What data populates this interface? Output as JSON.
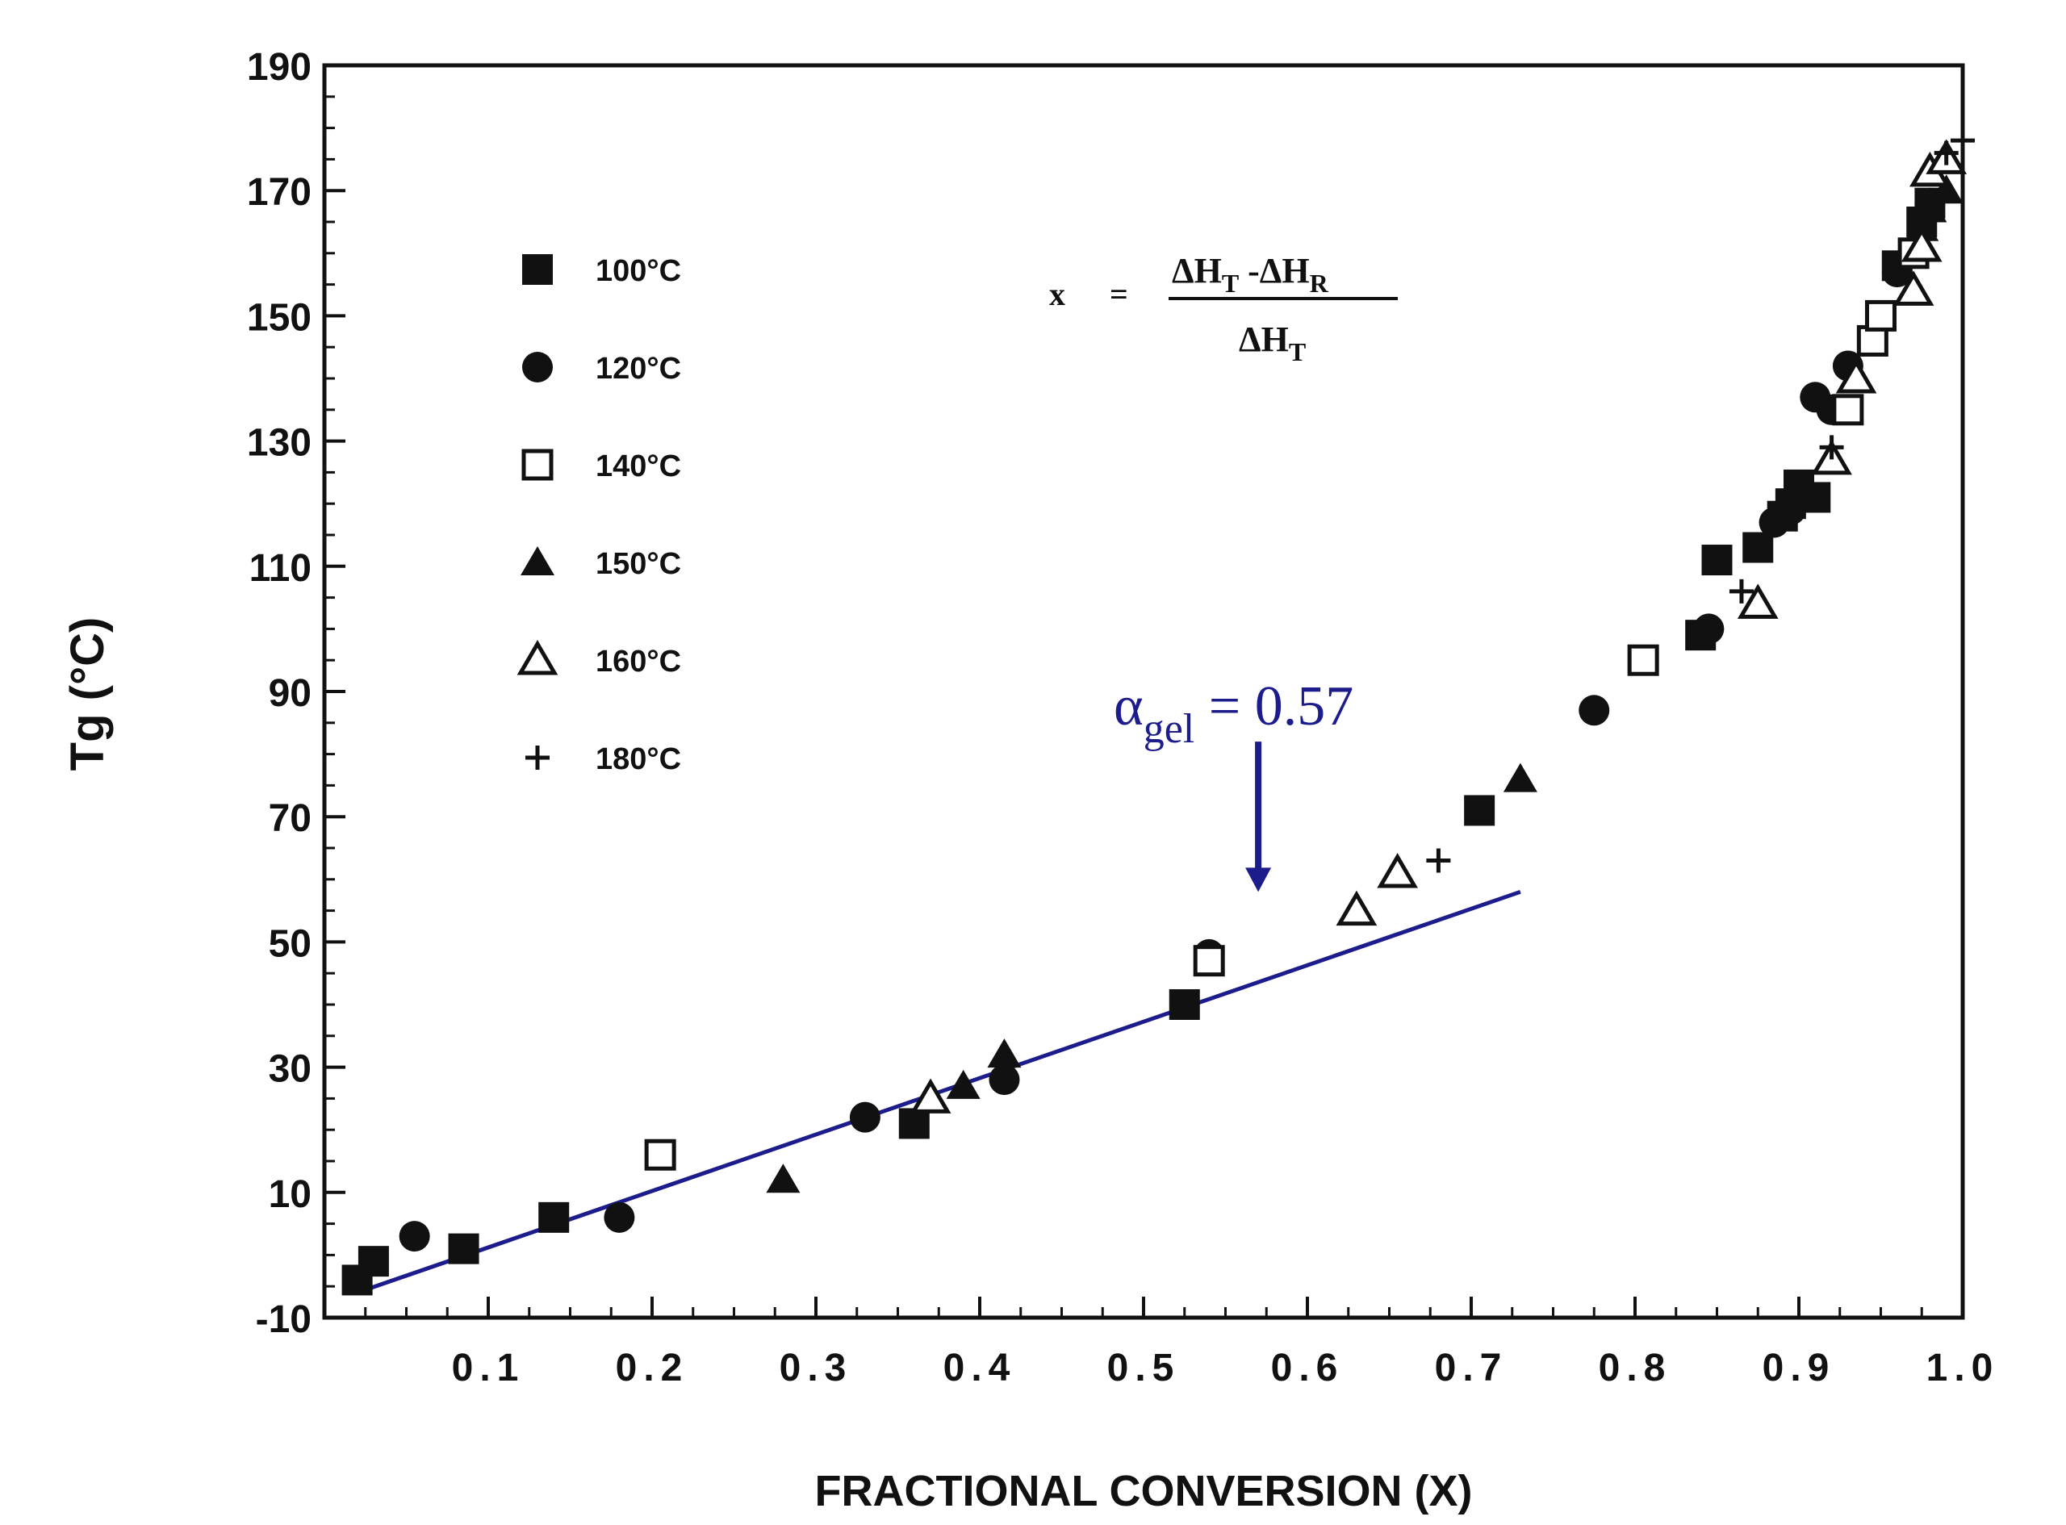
{
  "chart_data": {
    "type": "scatter",
    "xlabel": "FRACTIONAL CONVERSION (X)",
    "ylabel": "Tg  (°C)",
    "xlim": [
      0.0,
      1.0
    ],
    "ylim": [
      -10,
      190
    ],
    "x_ticks": [
      "0.1",
      "0.2",
      "0.3",
      "0.4",
      "0.5",
      "0.6",
      "0.7",
      "0.8",
      "0.9",
      "1.0"
    ],
    "y_ticks": [
      "-10",
      "10",
      "30",
      "50",
      "70",
      "90",
      "110",
      "130",
      "150",
      "170",
      "190"
    ],
    "grid": false,
    "legend_position": "upper-left",
    "formula": {
      "lhs": "x",
      "equals": "=",
      "num_a": "ΔH",
      "num_a_sub": "T",
      "num_minus": " -ΔH",
      "num_b_sub": "R",
      "den": "ΔH",
      "den_sub": "T"
    },
    "annotation": {
      "symbol": "α",
      "subscript": "gel",
      "text": " = 0.57",
      "color": "#1c1c8c",
      "arrow_x": 0.57,
      "arrow_y_from": 82,
      "arrow_y_to": 58
    },
    "fit_line": {
      "color": "#1c1c8c",
      "x": [
        0.02,
        0.73
      ],
      "y": [
        -6,
        58
      ]
    },
    "series": [
      {
        "name": "100°C",
        "marker": "square-filled",
        "x": [
          0.02,
          0.03,
          0.085,
          0.14,
          0.36,
          0.525,
          0.705,
          0.84,
          0.85,
          0.875,
          0.89,
          0.895,
          0.9,
          0.91,
          0.96,
          0.975,
          0.98
        ],
        "y": [
          -4,
          -1,
          1,
          6,
          21,
          40,
          71,
          99,
          111,
          113,
          118,
          120,
          123,
          121,
          158,
          165,
          168
        ]
      },
      {
        "name": "120°C",
        "marker": "circle-filled",
        "x": [
          0.055,
          0.18,
          0.33,
          0.415,
          0.54,
          0.775,
          0.845,
          0.885,
          0.895,
          0.91,
          0.92,
          0.93,
          0.96,
          0.98
        ],
        "y": [
          3,
          6,
          22,
          28,
          48,
          87,
          100,
          117,
          119,
          137,
          135,
          142,
          157,
          168
        ]
      },
      {
        "name": "140°C",
        "marker": "square-open",
        "x": [
          0.205,
          0.54,
          0.805,
          0.93,
          0.945,
          0.95,
          0.97
        ],
        "y": [
          16,
          47,
          95,
          135,
          146,
          150,
          160
        ]
      },
      {
        "name": "150°C",
        "marker": "triangle-filled",
        "x": [
          0.28,
          0.39,
          0.415,
          0.73,
          0.975,
          0.98,
          0.99
        ],
        "y": [
          12,
          27,
          32,
          76,
          164,
          167,
          170
        ]
      },
      {
        "name": "160°C",
        "marker": "triangle-open",
        "x": [
          0.37,
          0.63,
          0.655,
          0.875,
          0.92,
          0.935,
          0.97,
          0.975,
          0.98,
          0.99
        ],
        "y": [
          25,
          55,
          61,
          104,
          127,
          140,
          154,
          161,
          173,
          175
        ]
      },
      {
        "name": "180°C",
        "marker": "plus",
        "x": [
          0.68,
          0.865,
          0.92,
          0.99,
          1.0
        ],
        "y": [
          63,
          106,
          129,
          176,
          178
        ]
      }
    ]
  }
}
